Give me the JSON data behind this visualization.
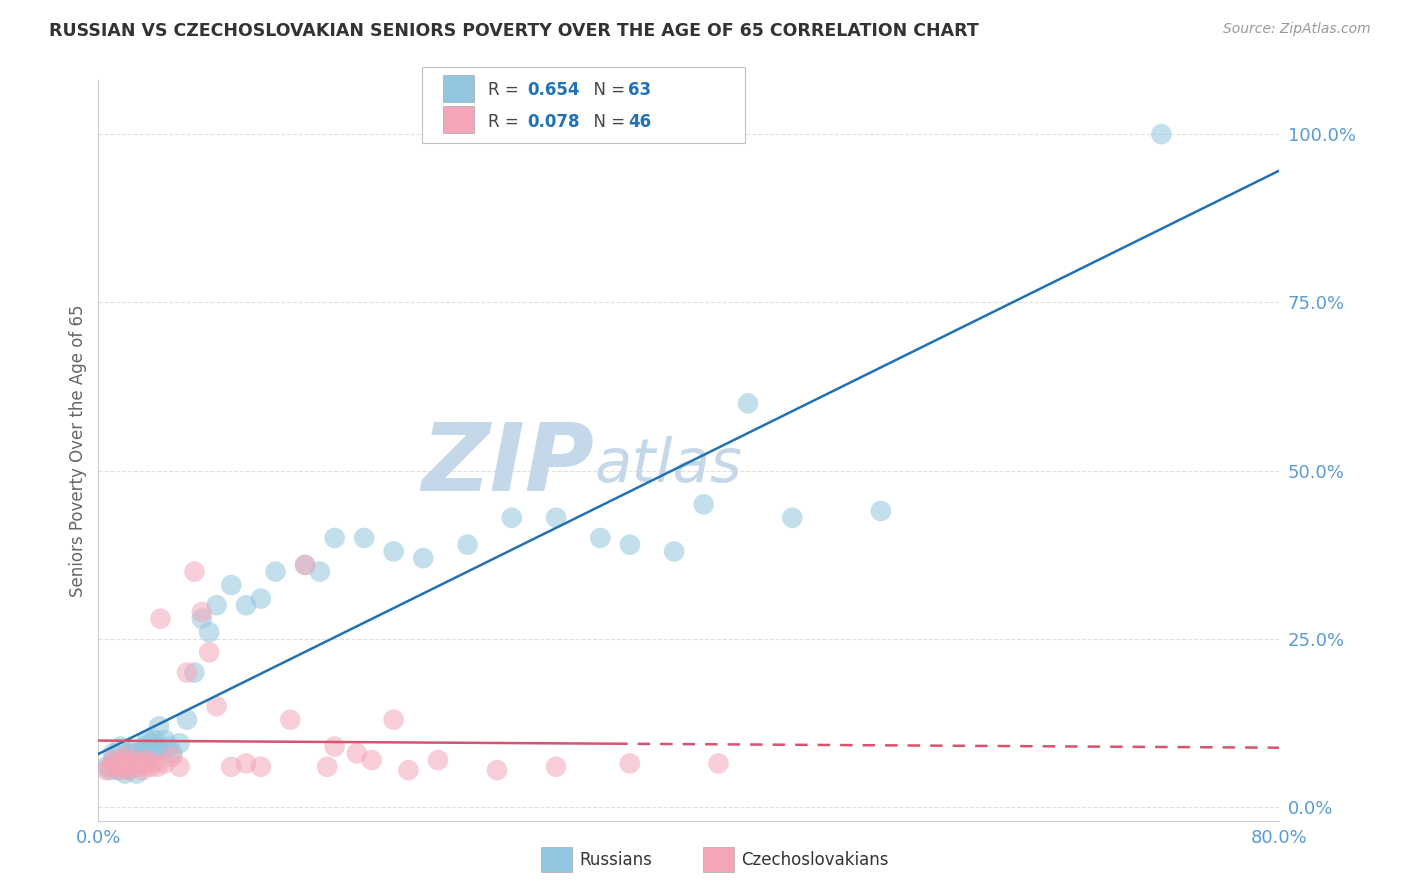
{
  "title": "RUSSIAN VS CZECHOSLOVAKIAN SENIORS POVERTY OVER THE AGE OF 65 CORRELATION CHART",
  "source": "Source: ZipAtlas.com",
  "ylabel": "Seniors Poverty Over the Age of 65",
  "xlim": [
    0.0,
    0.8
  ],
  "ylim": [
    -0.02,
    1.08
  ],
  "yticks": [
    0.0,
    0.25,
    0.5,
    0.75,
    1.0
  ],
  "ytick_labels": [
    "0.0%",
    "25.0%",
    "50.0%",
    "75.0%",
    "100.0%"
  ],
  "xtick_labels": [
    "0.0%",
    "80.0%"
  ],
  "russian_R": 0.654,
  "russian_N": 63,
  "czech_R": 0.078,
  "czech_N": 46,
  "russian_color": "#92c5de",
  "czech_color": "#f4a6b8",
  "russian_line_color": "#2171b5",
  "czech_line_solid_color": "#d6546e",
  "czech_line_dash_color": "#d6546e",
  "watermark_zip_color": "#c5d8ea",
  "watermark_atlas_color": "#c5d8ea",
  "background_color": "#ffffff",
  "grid_color": "#e0e0e0",
  "title_color": "#333333",
  "tick_color": "#5b9bd5",
  "russian_x": [
    0.005,
    0.008,
    0.01,
    0.01,
    0.012,
    0.013,
    0.015,
    0.015,
    0.016,
    0.017,
    0.018,
    0.018,
    0.02,
    0.02,
    0.021,
    0.022,
    0.022,
    0.023,
    0.025,
    0.025,
    0.026,
    0.027,
    0.028,
    0.03,
    0.031,
    0.032,
    0.033,
    0.035,
    0.037,
    0.038,
    0.04,
    0.041,
    0.042,
    0.045,
    0.048,
    0.05,
    0.055,
    0.06,
    0.065,
    0.07,
    0.075,
    0.08,
    0.09,
    0.1,
    0.11,
    0.12,
    0.14,
    0.15,
    0.16,
    0.18,
    0.2,
    0.22,
    0.25,
    0.28,
    0.31,
    0.34,
    0.36,
    0.39,
    0.41,
    0.44,
    0.47,
    0.53,
    0.72
  ],
  "russian_y": [
    0.06,
    0.055,
    0.07,
    0.08,
    0.065,
    0.055,
    0.09,
    0.06,
    0.07,
    0.065,
    0.05,
    0.075,
    0.06,
    0.08,
    0.055,
    0.07,
    0.085,
    0.06,
    0.065,
    0.08,
    0.05,
    0.07,
    0.065,
    0.08,
    0.09,
    0.085,
    0.1,
    0.095,
    0.08,
    0.1,
    0.09,
    0.12,
    0.085,
    0.1,
    0.09,
    0.08,
    0.095,
    0.13,
    0.2,
    0.28,
    0.26,
    0.3,
    0.33,
    0.3,
    0.31,
    0.35,
    0.36,
    0.35,
    0.4,
    0.4,
    0.38,
    0.37,
    0.39,
    0.43,
    0.43,
    0.4,
    0.39,
    0.38,
    0.45,
    0.6,
    0.43,
    0.44,
    1.0
  ],
  "czech_x": [
    0.005,
    0.008,
    0.01,
    0.012,
    0.013,
    0.015,
    0.016,
    0.017,
    0.018,
    0.02,
    0.021,
    0.022,
    0.025,
    0.027,
    0.028,
    0.03,
    0.032,
    0.033,
    0.035,
    0.038,
    0.04,
    0.042,
    0.045,
    0.05,
    0.055,
    0.06,
    0.065,
    0.07,
    0.075,
    0.08,
    0.09,
    0.1,
    0.11,
    0.13,
    0.14,
    0.155,
    0.16,
    0.175,
    0.185,
    0.2,
    0.21,
    0.23,
    0.27,
    0.31,
    0.36,
    0.42
  ],
  "czech_y": [
    0.055,
    0.06,
    0.07,
    0.06,
    0.065,
    0.055,
    0.07,
    0.06,
    0.075,
    0.065,
    0.055,
    0.06,
    0.07,
    0.065,
    0.06,
    0.055,
    0.065,
    0.07,
    0.06,
    0.065,
    0.06,
    0.28,
    0.065,
    0.075,
    0.06,
    0.2,
    0.35,
    0.29,
    0.23,
    0.15,
    0.06,
    0.065,
    0.06,
    0.13,
    0.36,
    0.06,
    0.09,
    0.08,
    0.07,
    0.13,
    0.055,
    0.07,
    0.055,
    0.06,
    0.065,
    0.065
  ]
}
